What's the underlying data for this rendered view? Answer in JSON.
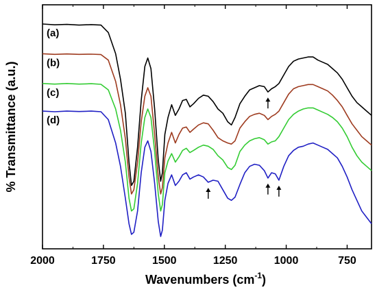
{
  "chart_data": {
    "type": "line",
    "title": "",
    "xlabel": "Wavenumbers (cm",
    "xlabel_sup": "-1",
    "xlabel_close": ")",
    "ylabel": "% Transmittance (a.u.)",
    "xlim": [
      2000,
      650
    ],
    "x_reversed": true,
    "y_ticks_shown": false,
    "grid": false,
    "legend": "none",
    "x_ticks": [
      2000,
      1750,
      1500,
      1250,
      1000,
      750
    ],
    "x_tick_labels": [
      "2000",
      "1750",
      "1500",
      "1250",
      "1000",
      "750"
    ],
    "series": [
      {
        "label": "(a)",
        "color": "#000000",
        "points": [
          [
            2000,
            100
          ],
          [
            1950,
            99.6
          ],
          [
            1900,
            99.8
          ],
          [
            1850,
            99.5
          ],
          [
            1800,
            99.7
          ],
          [
            1760,
            99.5
          ],
          [
            1730,
            96
          ],
          [
            1700,
            86
          ],
          [
            1680,
            74
          ],
          [
            1660,
            58
          ],
          [
            1645,
            35
          ],
          [
            1635,
            24
          ],
          [
            1625,
            26
          ],
          [
            1610,
            42
          ],
          [
            1595,
            64
          ],
          [
            1580,
            80
          ],
          [
            1568,
            84
          ],
          [
            1555,
            79
          ],
          [
            1540,
            60
          ],
          [
            1525,
            36
          ],
          [
            1515,
            26
          ],
          [
            1508,
            30
          ],
          [
            1498,
            48
          ],
          [
            1485,
            56
          ],
          [
            1470,
            62
          ],
          [
            1455,
            57
          ],
          [
            1440,
            60
          ],
          [
            1425,
            64
          ],
          [
            1410,
            64.5
          ],
          [
            1395,
            61
          ],
          [
            1380,
            62.5
          ],
          [
            1360,
            65
          ],
          [
            1340,
            66.5
          ],
          [
            1320,
            66
          ],
          [
            1300,
            63.5
          ],
          [
            1280,
            60
          ],
          [
            1260,
            58
          ],
          [
            1240,
            54
          ],
          [
            1225,
            52.5
          ],
          [
            1210,
            56
          ],
          [
            1190,
            62.5
          ],
          [
            1170,
            66
          ],
          [
            1150,
            69
          ],
          [
            1130,
            70
          ],
          [
            1110,
            71
          ],
          [
            1090,
            70.5
          ],
          [
            1075,
            68
          ],
          [
            1060,
            69.5
          ],
          [
            1045,
            70.5
          ],
          [
            1030,
            72
          ],
          [
            1010,
            76
          ],
          [
            990,
            80
          ],
          [
            970,
            82.5
          ],
          [
            950,
            83.5
          ],
          [
            930,
            84
          ],
          [
            910,
            84.5
          ],
          [
            890,
            84.5
          ],
          [
            870,
            83
          ],
          [
            850,
            82
          ],
          [
            830,
            81
          ],
          [
            810,
            79
          ],
          [
            790,
            77
          ],
          [
            770,
            74
          ],
          [
            750,
            70
          ],
          [
            730,
            66
          ],
          [
            710,
            63
          ],
          [
            690,
            61
          ],
          [
            670,
            59
          ],
          [
            650,
            57
          ]
        ]
      },
      {
        "label": "(b)",
        "color": "#9e3b1f",
        "points": [
          [
            2000,
            86
          ],
          [
            1950,
            85.7
          ],
          [
            1900,
            85.9
          ],
          [
            1850,
            85.7
          ],
          [
            1800,
            85.8
          ],
          [
            1760,
            85.6
          ],
          [
            1730,
            83
          ],
          [
            1700,
            73
          ],
          [
            1680,
            62
          ],
          [
            1660,
            46
          ],
          [
            1645,
            28
          ],
          [
            1635,
            20
          ],
          [
            1625,
            22
          ],
          [
            1610,
            35
          ],
          [
            1595,
            54
          ],
          [
            1580,
            66
          ],
          [
            1568,
            70
          ],
          [
            1555,
            66
          ],
          [
            1540,
            48
          ],
          [
            1525,
            28
          ],
          [
            1515,
            20
          ],
          [
            1508,
            23
          ],
          [
            1498,
            37
          ],
          [
            1485,
            44
          ],
          [
            1470,
            49
          ],
          [
            1455,
            44
          ],
          [
            1440,
            48
          ],
          [
            1425,
            51
          ],
          [
            1410,
            51.5
          ],
          [
            1395,
            49
          ],
          [
            1380,
            50.5
          ],
          [
            1360,
            52.5
          ],
          [
            1340,
            53.5
          ],
          [
            1320,
            53
          ],
          [
            1300,
            50
          ],
          [
            1280,
            46.5
          ],
          [
            1260,
            45
          ],
          [
            1240,
            44
          ],
          [
            1225,
            43.5
          ],
          [
            1210,
            45
          ],
          [
            1190,
            51
          ],
          [
            1170,
            54
          ],
          [
            1150,
            56.5
          ],
          [
            1130,
            57.5
          ],
          [
            1110,
            58
          ],
          [
            1090,
            57
          ],
          [
            1075,
            55
          ],
          [
            1060,
            56.5
          ],
          [
            1045,
            57.5
          ],
          [
            1030,
            59
          ],
          [
            1010,
            63
          ],
          [
            990,
            67
          ],
          [
            970,
            69.5
          ],
          [
            950,
            70.5
          ],
          [
            930,
            71
          ],
          [
            910,
            71.5
          ],
          [
            890,
            71.5
          ],
          [
            870,
            70.5
          ],
          [
            850,
            69.5
          ],
          [
            830,
            68.5
          ],
          [
            810,
            66.5
          ],
          [
            790,
            64
          ],
          [
            770,
            61
          ],
          [
            750,
            57
          ],
          [
            730,
            53
          ],
          [
            710,
            50
          ],
          [
            690,
            47
          ],
          [
            670,
            45
          ],
          [
            650,
            43
          ]
        ]
      },
      {
        "label": "(c)",
        "color": "#33cc33",
        "points": [
          [
            2000,
            72
          ],
          [
            1950,
            71.7
          ],
          [
            1900,
            72
          ],
          [
            1850,
            71.7
          ],
          [
            1800,
            71.9
          ],
          [
            1760,
            71.6
          ],
          [
            1730,
            69
          ],
          [
            1700,
            60
          ],
          [
            1680,
            50
          ],
          [
            1660,
            35
          ],
          [
            1645,
            18
          ],
          [
            1635,
            12
          ],
          [
            1625,
            13
          ],
          [
            1610,
            25
          ],
          [
            1595,
            44
          ],
          [
            1580,
            56
          ],
          [
            1568,
            60
          ],
          [
            1555,
            56
          ],
          [
            1540,
            40
          ],
          [
            1525,
            20
          ],
          [
            1515,
            12
          ],
          [
            1508,
            15
          ],
          [
            1498,
            30
          ],
          [
            1485,
            35.5
          ],
          [
            1470,
            39
          ],
          [
            1455,
            35
          ],
          [
            1440,
            37.5
          ],
          [
            1425,
            40.5
          ],
          [
            1410,
            41.5
          ],
          [
            1395,
            39.5
          ],
          [
            1380,
            40.5
          ],
          [
            1360,
            42
          ],
          [
            1340,
            43
          ],
          [
            1320,
            42.5
          ],
          [
            1300,
            41
          ],
          [
            1280,
            38
          ],
          [
            1260,
            36
          ],
          [
            1240,
            32.5
          ],
          [
            1225,
            31.5
          ],
          [
            1210,
            33.5
          ],
          [
            1190,
            40
          ],
          [
            1170,
            43
          ],
          [
            1150,
            45
          ],
          [
            1130,
            46
          ],
          [
            1110,
            46.5
          ],
          [
            1090,
            45.5
          ],
          [
            1075,
            43.5
          ],
          [
            1060,
            44.5
          ],
          [
            1045,
            45
          ],
          [
            1030,
            47
          ],
          [
            1010,
            51
          ],
          [
            990,
            55
          ],
          [
            970,
            57.5
          ],
          [
            950,
            59
          ],
          [
            930,
            60
          ],
          [
            910,
            60.5
          ],
          [
            890,
            60.5
          ],
          [
            870,
            59.5
          ],
          [
            850,
            58.5
          ],
          [
            830,
            57.5
          ],
          [
            810,
            56
          ],
          [
            790,
            54
          ],
          [
            770,
            51
          ],
          [
            750,
            47
          ],
          [
            730,
            42
          ],
          [
            710,
            38
          ],
          [
            690,
            35
          ],
          [
            670,
            33
          ],
          [
            650,
            31
          ]
        ]
      },
      {
        "label": "(d)",
        "color": "#1f1fc4",
        "points": [
          [
            2000,
            59
          ],
          [
            1950,
            58.7
          ],
          [
            1900,
            59
          ],
          [
            1850,
            58.8
          ],
          [
            1800,
            59
          ],
          [
            1760,
            58.7
          ],
          [
            1730,
            55
          ],
          [
            1700,
            44
          ],
          [
            1680,
            33
          ],
          [
            1660,
            18
          ],
          [
            1645,
            6
          ],
          [
            1635,
            1
          ],
          [
            1625,
            2
          ],
          [
            1610,
            12
          ],
          [
            1595,
            30
          ],
          [
            1580,
            42
          ],
          [
            1568,
            45
          ],
          [
            1555,
            40
          ],
          [
            1540,
            25
          ],
          [
            1525,
            7
          ],
          [
            1515,
            0
          ],
          [
            1508,
            3
          ],
          [
            1498,
            17
          ],
          [
            1485,
            25
          ],
          [
            1470,
            29
          ],
          [
            1455,
            24
          ],
          [
            1440,
            26
          ],
          [
            1425,
            29
          ],
          [
            1410,
            30
          ],
          [
            1395,
            27
          ],
          [
            1380,
            28
          ],
          [
            1360,
            29
          ],
          [
            1340,
            28
          ],
          [
            1320,
            25.5
          ],
          [
            1300,
            26.5
          ],
          [
            1280,
            26
          ],
          [
            1260,
            22
          ],
          [
            1240,
            18
          ],
          [
            1225,
            17
          ],
          [
            1210,
            18.5
          ],
          [
            1190,
            24.5
          ],
          [
            1170,
            30
          ],
          [
            1150,
            33
          ],
          [
            1130,
            34
          ],
          [
            1110,
            33.5
          ],
          [
            1090,
            31
          ],
          [
            1075,
            27.5
          ],
          [
            1060,
            30
          ],
          [
            1045,
            29.5
          ],
          [
            1030,
            26.5
          ],
          [
            1010,
            33
          ],
          [
            990,
            38
          ],
          [
            970,
            40.5
          ],
          [
            950,
            42
          ],
          [
            930,
            42.5
          ],
          [
            910,
            43.5
          ],
          [
            890,
            44
          ],
          [
            870,
            43
          ],
          [
            850,
            42
          ],
          [
            830,
            41
          ],
          [
            810,
            39
          ],
          [
            790,
            37
          ],
          [
            770,
            33
          ],
          [
            750,
            28
          ],
          [
            730,
            22
          ],
          [
            710,
            17
          ],
          [
            690,
            12
          ],
          [
            670,
            9
          ],
          [
            650,
            6
          ]
        ]
      }
    ],
    "annotations": [
      {
        "type": "arrow-up",
        "series": "(a)",
        "x": 1075
      },
      {
        "type": "arrow-up",
        "series": "(d)",
        "x": 1320
      },
      {
        "type": "arrow-up",
        "series": "(d)",
        "x": 1075
      },
      {
        "type": "arrow-up",
        "series": "(d)",
        "x": 1030
      }
    ]
  }
}
